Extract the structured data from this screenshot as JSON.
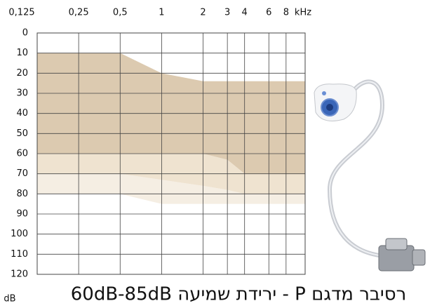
{
  "chart_data": {
    "type": "area",
    "title": "רסיבר מדגם P - ירידת שמיעה 60dB-85dB",
    "ylabel": "dB",
    "x_unit": "kHz",
    "xscale": "log",
    "yinverted": true,
    "grid": true,
    "xlim": [
      0.125,
      11
    ],
    "ylim": [
      0,
      120
    ],
    "xticks": [
      {
        "value": 0.125,
        "label": "0,125"
      },
      {
        "value": 0.25,
        "label": "0,25"
      },
      {
        "value": 0.5,
        "label": "0,5"
      },
      1,
      2,
      3,
      4,
      6,
      8
    ],
    "yticks": [
      0,
      10,
      20,
      30,
      40,
      50,
      60,
      70,
      80,
      90,
      100,
      110,
      120
    ],
    "x": [
      0.125,
      0.5,
      1,
      2,
      3,
      4,
      11
    ],
    "bands": [
      {
        "color": "#f5eee3",
        "top": [
          70,
          70,
          73,
          76,
          78,
          80,
          80
        ],
        "bottom": [
          80,
          80,
          85,
          85,
          85,
          85,
          85
        ]
      },
      {
        "color": "#efe3d0",
        "top": [
          60,
          60,
          60,
          60,
          63,
          70,
          70
        ],
        "bottom": [
          70,
          70,
          73,
          76,
          78,
          80,
          80
        ]
      },
      {
        "color": "#dccab0",
        "top": [
          10,
          10,
          20,
          24,
          24,
          24,
          24
        ],
        "bottom": [
          60,
          60,
          60,
          60,
          63,
          70,
          70
        ]
      }
    ]
  }
}
